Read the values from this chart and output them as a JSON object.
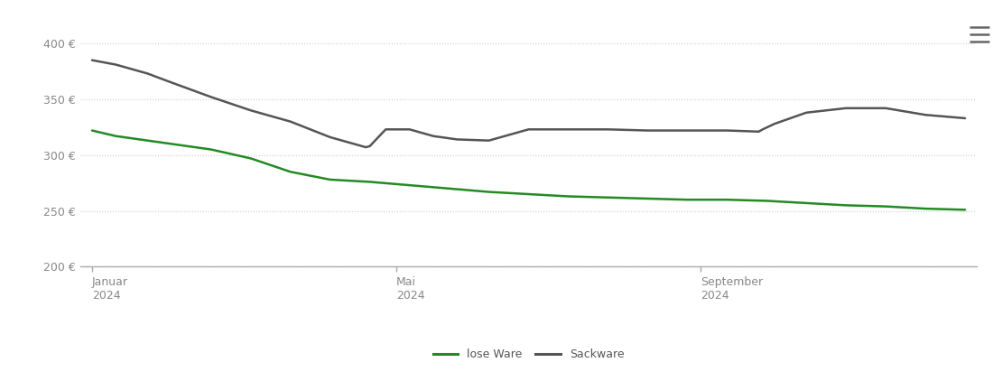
{
  "background_color": "#ffffff",
  "grid_color": "#cccccc",
  "axis_color": "#aaaaaa",
  "ylim": [
    200,
    415
  ],
  "yticks": [
    200,
    250,
    300,
    350,
    400
  ],
  "lose_ware_color": "#228B22",
  "sackware_color": "#555555",
  "lose_ware_label": "lose Ware",
  "sackware_label": "Sackware",
  "lose_ware_x": [
    0,
    0.3,
    0.7,
    1.0,
    1.5,
    2.0,
    2.5,
    3.0,
    3.5,
    4.0,
    4.5,
    5.0,
    5.5,
    6.0,
    6.5,
    7.0,
    7.5,
    8.0,
    8.5,
    9.0,
    9.5,
    10.0,
    10.5,
    11.0
  ],
  "lose_ware_y": [
    322,
    317,
    313,
    310,
    305,
    297,
    285,
    278,
    276,
    273,
    270,
    267,
    265,
    263,
    262,
    261,
    260,
    260,
    259,
    257,
    255,
    254,
    252,
    251
  ],
  "sackware_x": [
    0,
    0.3,
    0.7,
    1.0,
    1.5,
    2.0,
    2.5,
    3.0,
    3.4,
    3.45,
    3.5,
    3.7,
    4.0,
    4.3,
    4.6,
    5.0,
    5.5,
    6.0,
    6.5,
    7.0,
    7.5,
    8.0,
    8.4,
    8.45,
    8.6,
    9.0,
    9.5,
    10.0,
    10.5,
    11.0
  ],
  "sackware_y": [
    385,
    381,
    373,
    365,
    352,
    340,
    330,
    316,
    308,
    307,
    308,
    323,
    323,
    317,
    314,
    313,
    323,
    323,
    323,
    322,
    322,
    322,
    321,
    323,
    328,
    338,
    342,
    342,
    336,
    333
  ],
  "linewidth": 1.8,
  "xtick_positions": [
    0.0,
    3.83,
    7.67
  ],
  "xtick_labels_line1": [
    "Januar",
    "Mai",
    "September"
  ],
  "xtick_labels_line2": [
    "2024",
    "2024",
    "2024"
  ]
}
